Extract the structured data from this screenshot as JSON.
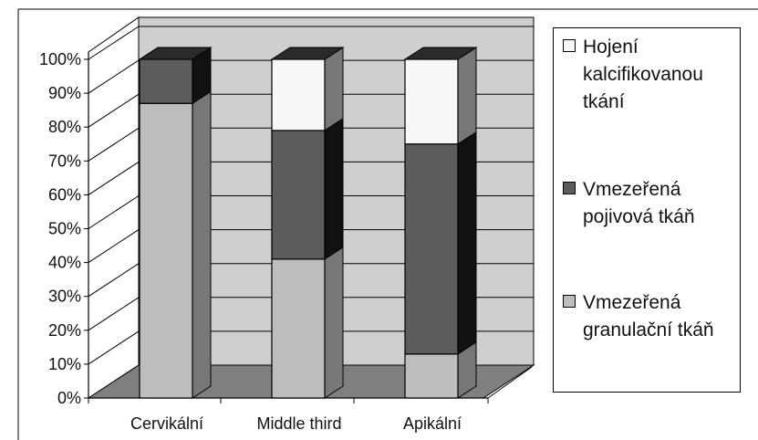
{
  "chart_data": {
    "type": "bar",
    "stacked": true,
    "three_d": true,
    "categories": [
      "Cervikální",
      "Middle third",
      "Apikální"
    ],
    "series": [
      {
        "name": "Vmezeřená granulační tkáň",
        "values": [
          87,
          41,
          13
        ],
        "color": "#bdbdbd"
      },
      {
        "name": "Vmezeřená pojivová tkáň",
        "values": [
          13,
          38,
          62
        ],
        "color": "#5c5c5c"
      },
      {
        "name": "Hojení kalcifikovanou tkání",
        "values": [
          0,
          21,
          25
        ],
        "color": "#f8f8f8"
      }
    ],
    "y_ticks": [
      "0%",
      "10%",
      "20%",
      "30%",
      "40%",
      "50%",
      "60%",
      "70%",
      "80%",
      "90%",
      "100%"
    ],
    "ylim": [
      0,
      100
    ],
    "grid": true,
    "legend_position": "right",
    "legend_order": [
      "Hojení kalcifikovanou tkání",
      "Vmezeřená pojivová tkáň",
      "Vmezeřená granulační tkáň"
    ],
    "colors": {
      "wall": "#cfcfcf",
      "floor": "#7f7f7f",
      "bar_side": "#5a5a5a",
      "bar_top": "#2a2a2a",
      "dark_side": "#111111"
    }
  }
}
